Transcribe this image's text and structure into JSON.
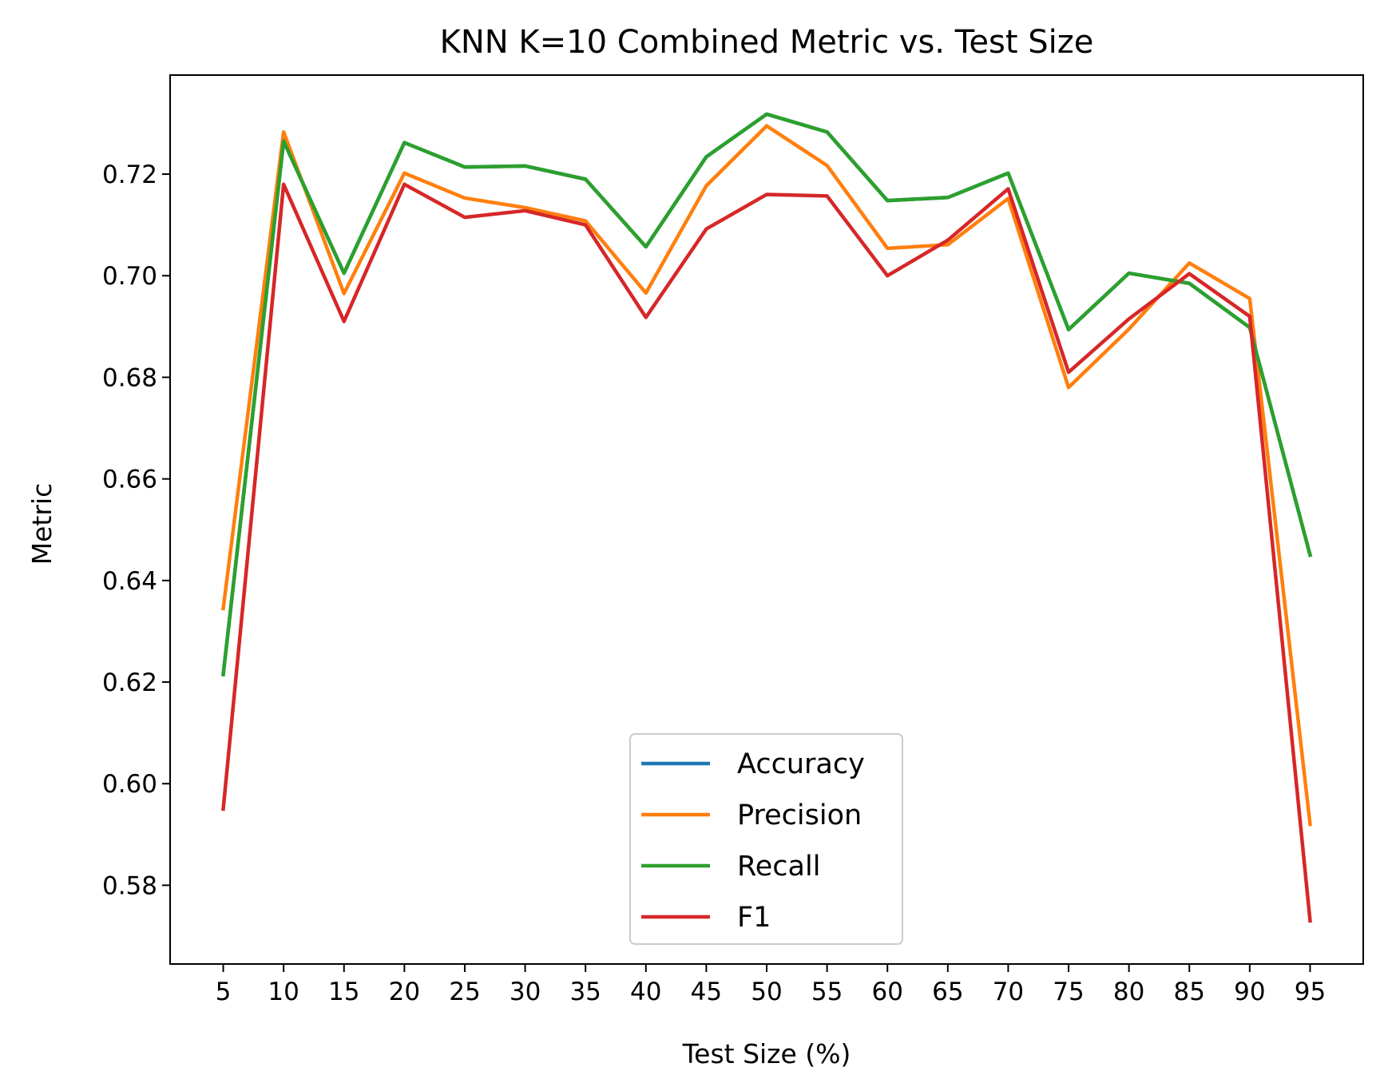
{
  "chart_data": {
    "type": "line",
    "title": "KNN K=10  Combined Metric vs. Test Size",
    "xlabel": "Test Size (%)",
    "ylabel": "Metric",
    "x": [
      5,
      10,
      15,
      20,
      25,
      30,
      35,
      40,
      45,
      50,
      55,
      60,
      65,
      70,
      75,
      80,
      85,
      90,
      95
    ],
    "xlim": [
      0.6,
      99.4
    ],
    "ylim": [
      0.5645,
      0.7395
    ],
    "yticks": [
      0.58,
      0.6,
      0.62,
      0.64,
      0.66,
      0.68,
      0.7,
      0.72
    ],
    "ytick_labels": [
      "0.58",
      "0.60",
      "0.62",
      "0.64",
      "0.66",
      "0.68",
      "0.70",
      "0.72"
    ],
    "xtick_labels": [
      "5",
      "10",
      "15",
      "20",
      "25",
      "30",
      "35",
      "40",
      "45",
      "50",
      "55",
      "60",
      "65",
      "70",
      "75",
      "80",
      "85",
      "90",
      "95"
    ],
    "grid": false,
    "legend": "lower center",
    "series": [
      {
        "name": "Accuracy",
        "color": "#1f77b4",
        "values": [
          0.6215,
          0.7265,
          0.7005,
          0.7262,
          0.7214,
          0.7216,
          0.719,
          0.7057,
          0.7234,
          0.7318,
          0.7283,
          0.7148,
          0.7154,
          0.7202,
          0.6894,
          0.7005,
          0.6985,
          0.6898,
          0.645
        ]
      },
      {
        "name": "Precision",
        "color": "#ff7f0e",
        "values": [
          0.6345,
          0.7283,
          0.6965,
          0.7202,
          0.7153,
          0.7134,
          0.7108,
          0.6966,
          0.7177,
          0.7295,
          0.7217,
          0.7054,
          0.7061,
          0.7152,
          0.678,
          0.6895,
          0.7025,
          0.6955,
          0.592
        ]
      },
      {
        "name": "Recall",
        "color": "#2ca02c",
        "values": [
          0.6215,
          0.7265,
          0.7005,
          0.7262,
          0.7214,
          0.7216,
          0.719,
          0.7057,
          0.7234,
          0.7318,
          0.7283,
          0.7148,
          0.7154,
          0.7202,
          0.6894,
          0.7005,
          0.6985,
          0.6898,
          0.645
        ]
      },
      {
        "name": "F1",
        "color": "#d62728",
        "values": [
          0.595,
          0.718,
          0.691,
          0.718,
          0.7115,
          0.7128,
          0.71,
          0.6918,
          0.7092,
          0.716,
          0.7157,
          0.7,
          0.707,
          0.7171,
          0.681,
          0.6915,
          0.7004,
          0.692,
          0.573
        ]
      }
    ]
  }
}
